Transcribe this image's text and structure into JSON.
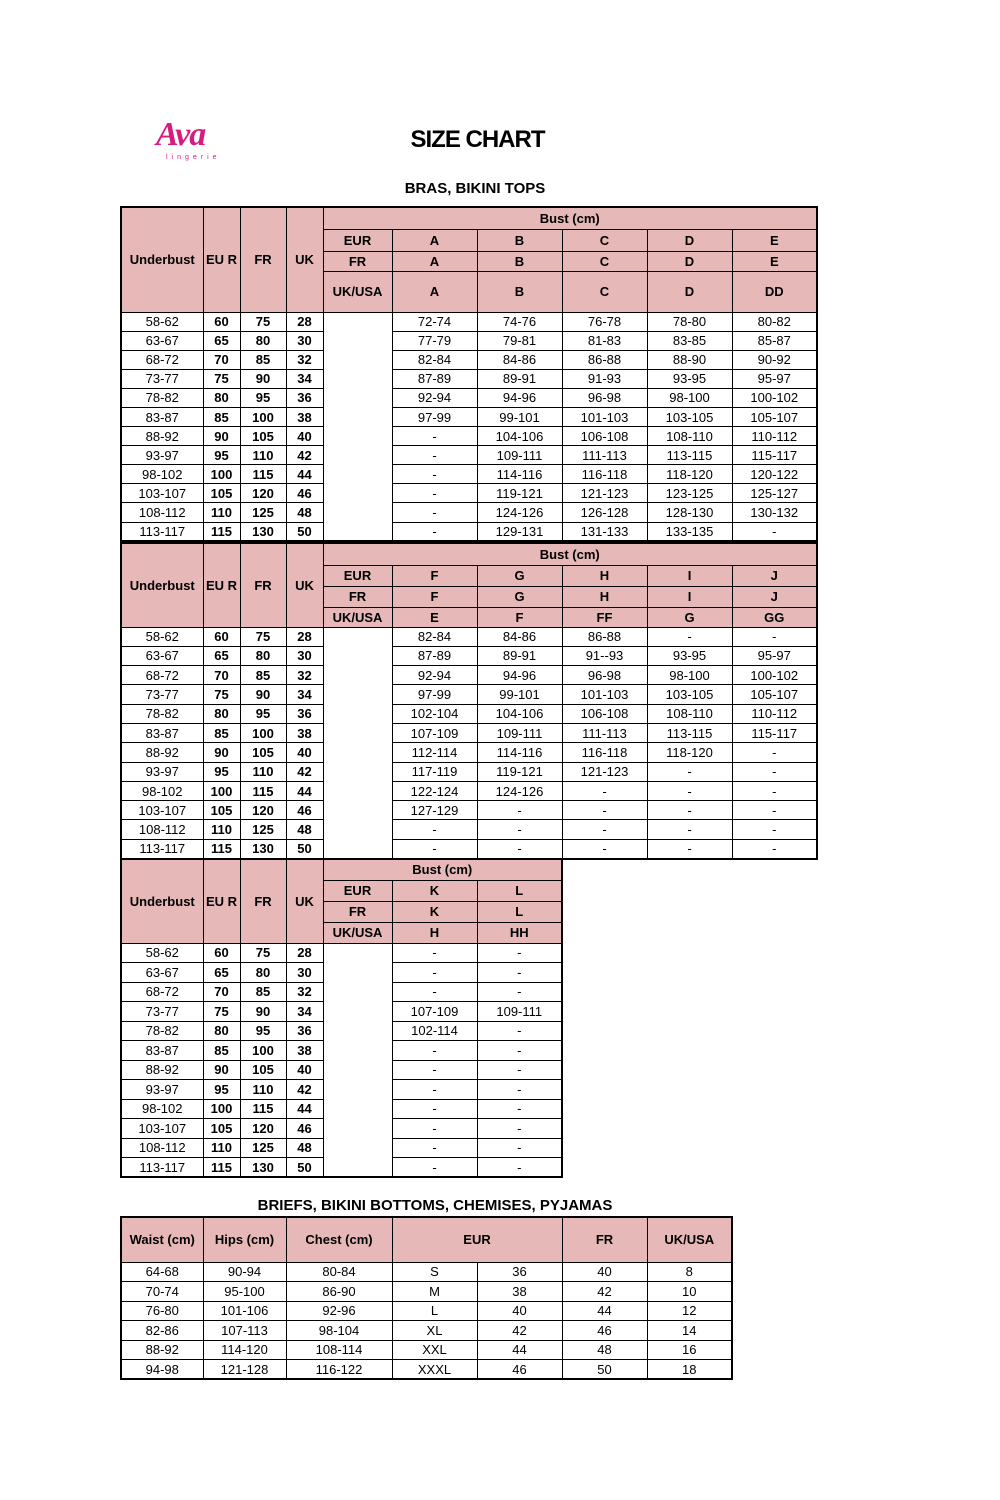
{
  "logo": {
    "text": "Ava",
    "subtext": "lingerie",
    "color": "#d81b7f"
  },
  "title": "SIZE CHART",
  "bras": {
    "section_title": "BRAS, BIKINI TOPS",
    "header_color": "#e6b8b7",
    "left_headers": [
      "Underbust",
      "EU R",
      "FR",
      "UK"
    ],
    "bust_label": "Bust (cm)",
    "row_labels": [
      "EUR",
      "FR",
      "UK/USA"
    ],
    "tables": [
      {
        "cups": {
          "EUR": [
            "A",
            "B",
            "C",
            "D",
            "E"
          ],
          "FR": [
            "A",
            "B",
            "C",
            "D",
            "E"
          ],
          "UK/USA": [
            "A",
            "B",
            "C",
            "D",
            "DD"
          ]
        },
        "rows": [
          [
            "58-62",
            "60",
            "75",
            "28",
            [
              "72-74",
              "74-76",
              "76-78",
              "78-80",
              "80-82"
            ]
          ],
          [
            "63-67",
            "65",
            "80",
            "30",
            [
              "77-79",
              "79-81",
              "81-83",
              "83-85",
              "85-87"
            ]
          ],
          [
            "68-72",
            "70",
            "85",
            "32",
            [
              "82-84",
              "84-86",
              "86-88",
              "88-90",
              "90-92"
            ]
          ],
          [
            "73-77",
            "75",
            "90",
            "34",
            [
              "87-89",
              "89-91",
              "91-93",
              "93-95",
              "95-97"
            ]
          ],
          [
            "78-82",
            "80",
            "95",
            "36",
            [
              "92-94",
              "94-96",
              "96-98",
              "98-100",
              "100-102"
            ]
          ],
          [
            "83-87",
            "85",
            "100",
            "38",
            [
              "97-99",
              "99-101",
              "101-103",
              "103-105",
              "105-107"
            ]
          ],
          [
            "88-92",
            "90",
            "105",
            "40",
            [
              "-",
              "104-106",
              "106-108",
              "108-110",
              "110-112"
            ]
          ],
          [
            "93-97",
            "95",
            "110",
            "42",
            [
              "-",
              "109-111",
              "111-113",
              "113-115",
              "115-117"
            ]
          ],
          [
            "98-102",
            "100",
            "115",
            "44",
            [
              "-",
              "114-116",
              "116-118",
              "118-120",
              "120-122"
            ]
          ],
          [
            "103-107",
            "105",
            "120",
            "46",
            [
              "-",
              "119-121",
              "121-123",
              "123-125",
              "125-127"
            ]
          ],
          [
            "108-112",
            "110",
            "125",
            "48",
            [
              "-",
              "124-126",
              "126-128",
              "128-130",
              "130-132"
            ]
          ],
          [
            "113-117",
            "115",
            "130",
            "50",
            [
              "-",
              "129-131",
              "131-133",
              "133-135",
              "-"
            ]
          ]
        ]
      },
      {
        "cups": {
          "EUR": [
            "F",
            "G",
            "H",
            "I",
            "J"
          ],
          "FR": [
            "F",
            "G",
            "H",
            "I",
            "J"
          ],
          "UK/USA": [
            "E",
            "F",
            "FF",
            "G",
            "GG"
          ]
        },
        "rows": [
          [
            "58-62",
            "60",
            "75",
            "28",
            [
              "82-84",
              "84-86",
              "86-88",
              "-",
              "-"
            ]
          ],
          [
            "63-67",
            "65",
            "80",
            "30",
            [
              "87-89",
              "89-91",
              "91--93",
              "93-95",
              "95-97"
            ]
          ],
          [
            "68-72",
            "70",
            "85",
            "32",
            [
              "92-94",
              "94-96",
              "96-98",
              "98-100",
              "100-102"
            ]
          ],
          [
            "73-77",
            "75",
            "90",
            "34",
            [
              "97-99",
              "99-101",
              "101-103",
              "103-105",
              "105-107"
            ]
          ],
          [
            "78-82",
            "80",
            "95",
            "36",
            [
              "102-104",
              "104-106",
              "106-108",
              "108-110",
              "110-112"
            ]
          ],
          [
            "83-87",
            "85",
            "100",
            "38",
            [
              "107-109",
              "109-111",
              "111-113",
              "113-115",
              "115-117"
            ]
          ],
          [
            "88-92",
            "90",
            "105",
            "40",
            [
              "112-114",
              "114-116",
              "116-118",
              "118-120",
              "-"
            ]
          ],
          [
            "93-97",
            "95",
            "110",
            "42",
            [
              "117-119",
              "119-121",
              "121-123",
              "-",
              "-"
            ]
          ],
          [
            "98-102",
            "100",
            "115",
            "44",
            [
              "122-124",
              "124-126",
              "-",
              "-",
              "-"
            ]
          ],
          [
            "103-107",
            "105",
            "120",
            "46",
            [
              "127-129",
              "-",
              "-",
              "-",
              "-"
            ]
          ],
          [
            "108-112",
            "110",
            "125",
            "48",
            [
              "-",
              "-",
              "-",
              "-",
              "-"
            ]
          ],
          [
            "113-117",
            "115",
            "130",
            "50",
            [
              "-",
              "-",
              "-",
              "-",
              "-"
            ]
          ]
        ]
      },
      {
        "cups": {
          "EUR": [
            "K",
            "L"
          ],
          "FR": [
            "K",
            "L"
          ],
          "UK/USA": [
            "H",
            "HH"
          ]
        },
        "rows": [
          [
            "58-62",
            "60",
            "75",
            "28",
            [
              "-",
              "-"
            ]
          ],
          [
            "63-67",
            "65",
            "80",
            "30",
            [
              "-",
              "-"
            ]
          ],
          [
            "68-72",
            "70",
            "85",
            "32",
            [
              "-",
              "-"
            ]
          ],
          [
            "73-77",
            "75",
            "90",
            "34",
            [
              "107-109",
              "109-111"
            ]
          ],
          [
            "78-82",
            "80",
            "95",
            "36",
            [
              "102-114",
              "-"
            ]
          ],
          [
            "83-87",
            "85",
            "100",
            "38",
            [
              "-",
              "-"
            ]
          ],
          [
            "88-92",
            "90",
            "105",
            "40",
            [
              "-",
              "-"
            ]
          ],
          [
            "93-97",
            "95",
            "110",
            "42",
            [
              "-",
              "-"
            ]
          ],
          [
            "98-102",
            "100",
            "115",
            "44",
            [
              "-",
              "-"
            ]
          ],
          [
            "103-107",
            "105",
            "120",
            "46",
            [
              "-",
              "-"
            ]
          ],
          [
            "108-112",
            "110",
            "125",
            "48",
            [
              "-",
              "-"
            ]
          ],
          [
            "113-117",
            "115",
            "130",
            "50",
            [
              "-",
              "-"
            ]
          ]
        ]
      }
    ]
  },
  "briefs": {
    "section_title": "BRIEFS, BIKINI BOTTOMS, CHEMISES, PYJAMAS",
    "headers": [
      "Waist (cm)",
      "Hips (cm)",
      "Chest (cm)",
      "EUR",
      "FR",
      "UK/USA"
    ],
    "rows": [
      [
        "64-68",
        "90-94",
        "80-84",
        "S",
        "36",
        "40",
        "8"
      ],
      [
        "70-74",
        "95-100",
        "86-90",
        "M",
        "38",
        "42",
        "10"
      ],
      [
        "76-80",
        "101-106",
        "92-96",
        "L",
        "40",
        "44",
        "12"
      ],
      [
        "82-86",
        "107-113",
        "98-104",
        "XL",
        "42",
        "46",
        "14"
      ],
      [
        "88-92",
        "114-120",
        "108-114",
        "XXL",
        "44",
        "48",
        "16"
      ],
      [
        "94-98",
        "121-128",
        "116-122",
        "XXXL",
        "46",
        "50",
        "18"
      ]
    ]
  }
}
